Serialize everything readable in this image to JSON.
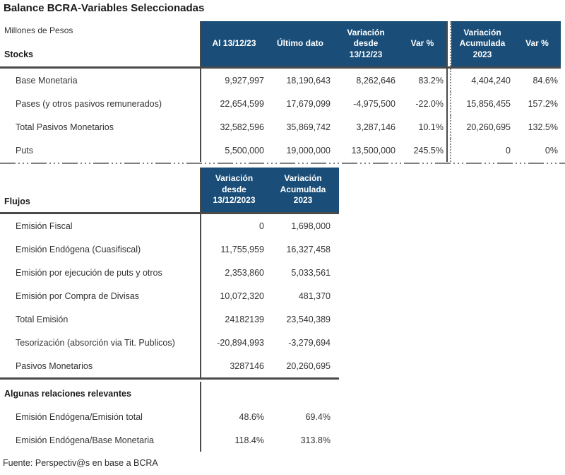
{
  "title": "Balance BCRA-Variables Seleccionadas",
  "units_label": "Millones de Pesos",
  "source": "Fuente: Perspectiv@s en base a BCRA",
  "colors": {
    "header_bg": "#1A4E78",
    "header_text": "#FFFFFF",
    "line": "#4A4A4A",
    "dotted_line": "#8F8F8F",
    "text": "#333333"
  },
  "stocks": {
    "section_label": "Stocks",
    "columns": [
      "Al 13/12/23",
      "Último dato",
      "Variación\ndesde\n13/12/23",
      "Var %",
      "Variación\nAcumulada\n2023",
      "Var %"
    ],
    "rows": [
      {
        "label": "Base Monetaria",
        "values": [
          "9,927,997",
          "18,190,643",
          "8,262,646",
          "83.2%",
          "4,404,240",
          "84.6%"
        ]
      },
      {
        "label": "Pases (y otros pasivos remunerados)",
        "values": [
          "22,654,599",
          "17,679,099",
          "-4,975,500",
          "-22.0%",
          "15,856,455",
          "157.2%"
        ]
      },
      {
        "label": "Total Pasivos Monetarios",
        "values": [
          "32,582,596",
          "35,869,742",
          "3,287,146",
          "10.1%",
          "20,260,695",
          "132.5%"
        ]
      },
      {
        "label": "Puts",
        "values": [
          "5,500,000",
          "19,000,000",
          "13,500,000",
          "245.5%",
          "0",
          "0%"
        ]
      }
    ]
  },
  "flows": {
    "section_label": "Flujos",
    "columns": [
      "Variación\ndesde\n13/12/2023",
      "Variación\nAcumulada\n2023"
    ],
    "rows": [
      {
        "label": "Emisión Fiscal",
        "values": [
          "0",
          "1,698,000"
        ]
      },
      {
        "label": "Emisión Endógena (Cuasifiscal)",
        "values": [
          "11,755,959",
          "16,327,458"
        ]
      },
      {
        "label": "Emisión por ejecución de puts y otros",
        "values": [
          "2,353,860",
          "5,033,561"
        ]
      },
      {
        "label": "Emisión por Compra de Divisas",
        "values": [
          "10,072,320",
          "481,370"
        ]
      },
      {
        "label": "Total Emisión",
        "values": [
          "24182139",
          "23,540,389"
        ]
      },
      {
        "label": "Tesorización (absorción via Tit. Publicos)",
        "values": [
          "-20,894,993",
          "-3,279,694"
        ]
      },
      {
        "label": "Pasivos Monetarios",
        "values": [
          "3287146",
          "20,260,695"
        ]
      }
    ]
  },
  "relations": {
    "section_label": "Algunas relaciones relevantes",
    "rows": [
      {
        "label": "Emisión Endógena/Emisión total",
        "values": [
          "48.6%",
          "69.4%"
        ]
      },
      {
        "label": "Emisión Endógena/Base Monetaria",
        "values": [
          "118.4%",
          "313.8%"
        ]
      }
    ]
  }
}
